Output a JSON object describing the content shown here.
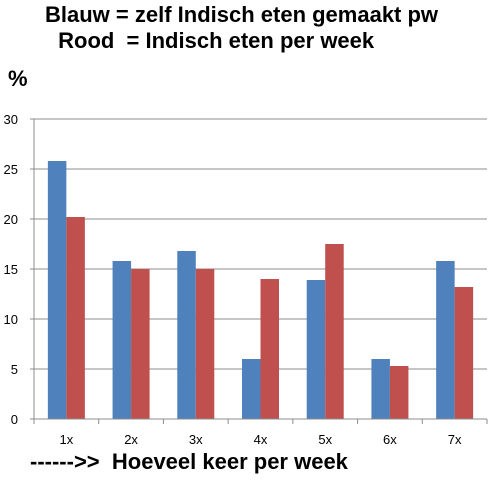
{
  "chart_data": {
    "type": "bar",
    "title_lines": [
      "Blauw = zelf Indisch eten gemaakt pw",
      " Rood  = Indisch eten per week"
    ],
    "ylabel": "%",
    "xlabel": "------>>  Hoeveel keer per week",
    "categories": [
      "1x",
      "2x",
      "3x",
      "4x",
      "5x",
      "6x",
      "7x"
    ],
    "ylim": [
      0,
      30
    ],
    "yticks": [
      0,
      5,
      10,
      15,
      20,
      25,
      30
    ],
    "grid": true,
    "series": [
      {
        "color": "#4f81bd",
        "values": [
          25.8,
          15.8,
          16.8,
          6.0,
          13.9,
          6.0,
          15.8
        ]
      },
      {
        "color": "#c0504d",
        "values": [
          20.2,
          15.0,
          15.0,
          14.0,
          17.5,
          5.3,
          13.2
        ]
      }
    ]
  }
}
